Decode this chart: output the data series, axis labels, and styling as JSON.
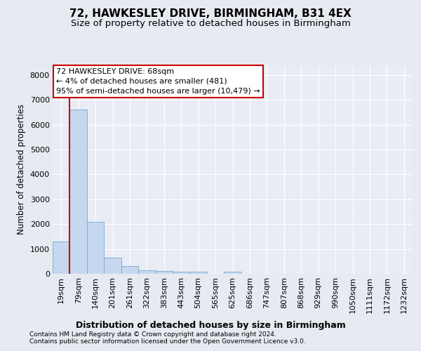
{
  "title1": "72, HAWKESLEY DRIVE, BIRMINGHAM, B31 4EX",
  "title2": "Size of property relative to detached houses in Birmingham",
  "xlabel": "Distribution of detached houses by size in Birmingham",
  "ylabel": "Number of detached properties",
  "footnote1": "Contains HM Land Registry data © Crown copyright and database right 2024.",
  "footnote2": "Contains public sector information licensed under the Open Government Licence v3.0.",
  "bar_labels": [
    "19sqm",
    "79sqm",
    "140sqm",
    "201sqm",
    "261sqm",
    "322sqm",
    "383sqm",
    "443sqm",
    "504sqm",
    "565sqm",
    "625sqm",
    "686sqm",
    "747sqm",
    "807sqm",
    "868sqm",
    "929sqm",
    "990sqm",
    "1050sqm",
    "1111sqm",
    "1172sqm",
    "1232sqm"
  ],
  "bar_values": [
    1310,
    6600,
    2080,
    640,
    300,
    150,
    105,
    80,
    90,
    0,
    90,
    0,
    0,
    0,
    0,
    0,
    0,
    0,
    0,
    0,
    0
  ],
  "bar_color": "#c5d8ef",
  "bar_edge_color": "#7ba7cc",
  "vline_x": 0.5,
  "vline_color": "#cc0000",
  "ann_line1": "72 HAWKESLEY DRIVE: 68sqm",
  "ann_line2": "← 4% of detached houses are smaller (481)",
  "ann_line3": "95% of semi-detached houses are larger (10,479) →",
  "annotation_box_facecolor": "#ffffff",
  "annotation_box_edgecolor": "#cc0000",
  "ylim": [
    0,
    8400
  ],
  "yticks": [
    0,
    1000,
    2000,
    3000,
    4000,
    5000,
    6000,
    7000,
    8000
  ],
  "bg_color": "#e8eaf2",
  "plot_bg_color": "#eaecf5",
  "grid_color": "#ffffff",
  "title1_fontsize": 11,
  "title2_fontsize": 9.5,
  "xlabel_fontsize": 9,
  "ylabel_fontsize": 8.5,
  "tick_fontsize": 8,
  "footnote_fontsize": 6.5,
  "ann_fontsize": 8
}
